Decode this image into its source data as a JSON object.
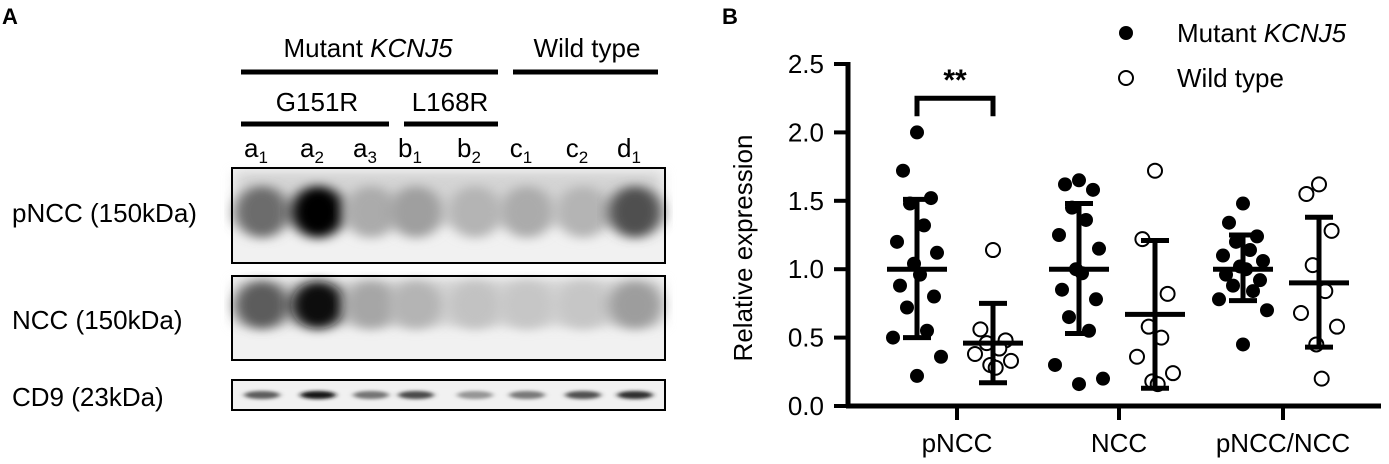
{
  "panels": {
    "a": "A",
    "b": "B"
  },
  "blot": {
    "group_mutant_prefix": "Mutant ",
    "group_mutant_gene": "KCNJ5",
    "group_wildtype": "Wild type",
    "subgroups": [
      "G151R",
      "L168R"
    ],
    "lanes": [
      {
        "base": "a",
        "sub": "1"
      },
      {
        "base": "a",
        "sub": "2"
      },
      {
        "base": "a",
        "sub": "3"
      },
      {
        "base": "b",
        "sub": "1"
      },
      {
        "base": "b",
        "sub": "2"
      },
      {
        "base": "c",
        "sub": "1"
      },
      {
        "base": "c",
        "sub": "2"
      },
      {
        "base": "d",
        "sub": "1"
      }
    ],
    "rows": [
      {
        "label": "pNCC (150kDa)",
        "intensity": [
          0.55,
          1.0,
          0.28,
          0.33,
          0.24,
          0.28,
          0.24,
          0.68
        ]
      },
      {
        "label": "NCC (150kDa)",
        "intensity": [
          0.62,
          0.95,
          0.3,
          0.24,
          0.18,
          0.16,
          0.16,
          0.34
        ]
      },
      {
        "label": "CD9 (23kDa)",
        "intensity": [
          0.62,
          0.92,
          0.52,
          0.7,
          0.38,
          0.5,
          0.68,
          0.82
        ]
      }
    ]
  },
  "chart_data": {
    "type": "scatter",
    "ylabel": "Relative expression",
    "xlabel": "",
    "ylim": [
      0,
      2.5
    ],
    "yticks": [
      "0.0",
      "0.5",
      "1.0",
      "1.5",
      "2.0",
      "2.5"
    ],
    "categories": [
      "pNCC",
      "NCC",
      "pNCC/NCC"
    ],
    "legend": {
      "position": "top-right",
      "mutant_prefix": "Mutant ",
      "mutant_gene": "KCNJ5",
      "wildtype": "Wild type"
    },
    "significance": [
      {
        "category": "pNCC",
        "label": "**"
      }
    ],
    "series": [
      {
        "name": "Mutant KCNJ5",
        "marker": "filled",
        "groups": [
          {
            "category": "pNCC",
            "mean": 1.0,
            "sd_low": 0.5,
            "sd_high": 1.51,
            "points": [
              2.0,
              1.72,
              1.52,
              1.48,
              1.32,
              1.2,
              1.12,
              1.04,
              0.96,
              0.88,
              0.8,
              0.72,
              0.55,
              0.5,
              0.36,
              0.22
            ]
          },
          {
            "category": "NCC",
            "mean": 1.0,
            "sd_low": 0.53,
            "sd_high": 1.48,
            "points": [
              1.65,
              1.62,
              1.58,
              1.45,
              1.36,
              1.25,
              1.15,
              1.0,
              0.97,
              0.85,
              0.78,
              0.65,
              0.55,
              0.3,
              0.2,
              0.16
            ]
          },
          {
            "category": "pNCC/NCC",
            "mean": 1.0,
            "sd_low": 0.77,
            "sd_high": 1.25,
            "points": [
              1.48,
              1.34,
              1.24,
              1.2,
              1.14,
              1.1,
              1.06,
              1.02,
              1.0,
              0.96,
              0.92,
              0.88,
              0.84,
              0.78,
              0.7,
              0.45
            ]
          }
        ]
      },
      {
        "name": "Wild type",
        "marker": "open",
        "groups": [
          {
            "category": "pNCC",
            "mean": 0.46,
            "sd_low": 0.17,
            "sd_high": 0.75,
            "points": [
              1.14,
              0.56,
              0.48,
              0.46,
              0.42,
              0.38,
              0.33,
              0.3,
              0.28
            ]
          },
          {
            "category": "NCC",
            "mean": 0.67,
            "sd_low": 0.13,
            "sd_high": 1.21,
            "points": [
              1.72,
              1.22,
              0.82,
              0.58,
              0.5,
              0.36,
              0.24,
              0.18,
              0.16
            ]
          },
          {
            "category": "pNCC/NCC",
            "mean": 0.9,
            "sd_low": 0.43,
            "sd_high": 1.38,
            "points": [
              1.62,
              1.55,
              1.28,
              1.03,
              0.84,
              0.68,
              0.58,
              0.45,
              0.2
            ]
          }
        ]
      }
    ]
  }
}
